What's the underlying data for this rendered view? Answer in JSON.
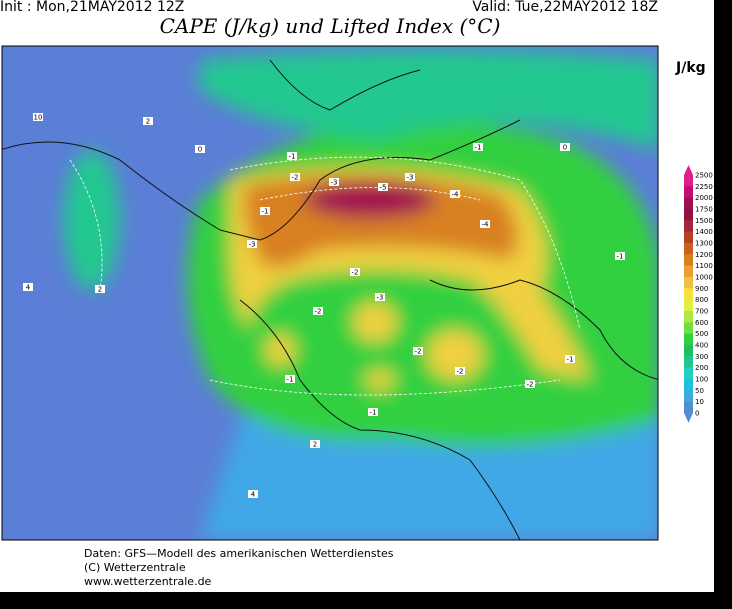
{
  "header": {
    "init": "Init : Mon,21MAY2012 12Z",
    "valid": "Valid: Tue,22MAY2012 18Z",
    "title": "CAPE (J/kg) und Lifted Index (°C)"
  },
  "legend": {
    "unit": "J/kg",
    "levels": [
      2500,
      2250,
      2000,
      1750,
      1500,
      1400,
      1300,
      1200,
      1100,
      1000,
      900,
      800,
      700,
      600,
      500,
      400,
      300,
      200,
      100,
      50,
      10,
      0
    ],
    "colors": [
      "#e0208a",
      "#c01070",
      "#a01050",
      "#901040",
      "#a02838",
      "#b84020",
      "#c86020",
      "#d88020",
      "#e8a030",
      "#f0c040",
      "#f8e040",
      "#e0f040",
      "#b0e840",
      "#70e040",
      "#30d040",
      "#20c060",
      "#20c890",
      "#20d0c0",
      "#20c0e0",
      "#40a8e0",
      "#5090d0"
    ]
  },
  "map": {
    "contour_labels": [
      "-1",
      "-1",
      "-2",
      "-3",
      "-3",
      "-4",
      "-5",
      "-4",
      "-3",
      "-2",
      "-1",
      "-3",
      "-2",
      "-2",
      "-2",
      "-1",
      "-1",
      "-2",
      "-1",
      "-1",
      "0",
      "0",
      "2",
      "2",
      "4",
      "10",
      "2",
      "4"
    ]
  },
  "footer": {
    "lines": [
      "Daten: GFS—Modell des amerikanischen Wetterdienstes",
      "(C) Wetterzentrale",
      "www.wetterzentrale.de"
    ]
  }
}
